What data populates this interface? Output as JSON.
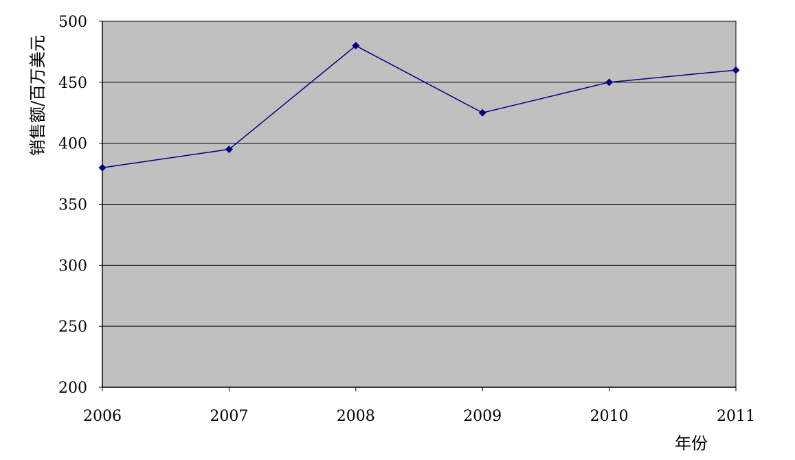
{
  "chart_data": {
    "type": "line",
    "title": "",
    "xlabel": "年份",
    "ylabel": "销售额/百万美元",
    "categories": [
      "2006",
      "2007",
      "2008",
      "2009",
      "2010",
      "2011"
    ],
    "series": [
      {
        "values": [
          380,
          395,
          480,
          425,
          450,
          460
        ]
      }
    ],
    "ylim": [
      200,
      500
    ],
    "yticks": [
      200,
      250,
      300,
      350,
      400,
      450,
      500
    ],
    "grid": true,
    "legend": "none",
    "colors": {
      "plot_background": "#c0c0c0",
      "series_line": "#000080",
      "gridline": "#000000",
      "axis": "#000000"
    }
  }
}
